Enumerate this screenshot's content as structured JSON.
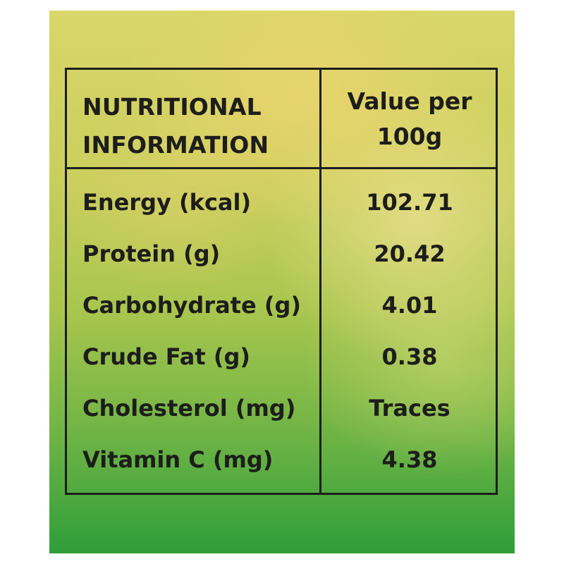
{
  "header": {
    "nutrient_title_line1": "NUTRITIONAL",
    "nutrient_title_line2": "INFORMATION",
    "value_title_line1": "Value per",
    "value_title_line2": "100g"
  },
  "rows": [
    {
      "label": "Energy (kcal)",
      "value": "102.71"
    },
    {
      "label": "Protein (g)",
      "value": "20.42"
    },
    {
      "label": "Carbohydrate (g)",
      "value": "4.01"
    },
    {
      "label": "Crude Fat (g)",
      "value": "0.38"
    },
    {
      "label": "Cholesterol (mg)",
      "value": "Traces"
    },
    {
      "label": "Vitamin C (mg)",
      "value": "4.38"
    }
  ],
  "colors": {
    "background_top": "#d9d66a",
    "background_bottom": "#2f9e3a",
    "text": "#1d1d1b",
    "border": "#1d1d1b"
  }
}
